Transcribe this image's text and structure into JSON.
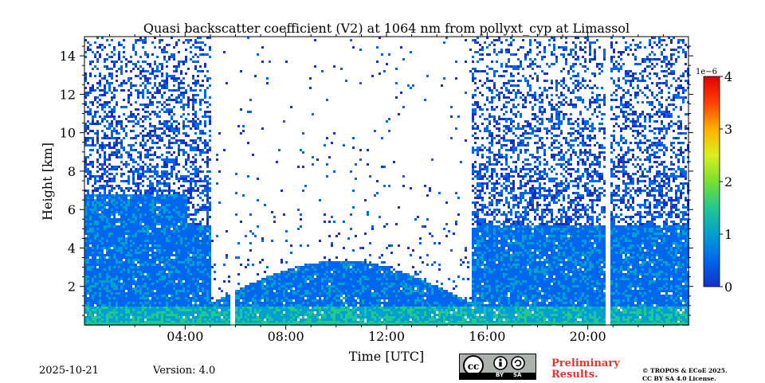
{
  "chart_data": {
    "type": "heatmap",
    "title": "Quasi backscatter coefficient (V2) at 1064 nm from pollyxt_cyp at Limassol",
    "xlabel": "Time [UTC]",
    "ylabel": "Height [km]",
    "xlim_hours": [
      0,
      24
    ],
    "ylim_km": [
      0,
      15
    ],
    "x_ticks": [
      {
        "h": 4,
        "label": "04:00"
      },
      {
        "h": 8,
        "label": "08:00"
      },
      {
        "h": 12,
        "label": "12:00"
      },
      {
        "h": 16,
        "label": "16:00"
      },
      {
        "h": 20,
        "label": "20:00"
      }
    ],
    "y_ticks": [
      {
        "v": 2,
        "label": "2"
      },
      {
        "v": 4,
        "label": "4"
      },
      {
        "v": 6,
        "label": "6"
      },
      {
        "v": 8,
        "label": "8"
      },
      {
        "v": 10,
        "label": "10"
      },
      {
        "v": 12,
        "label": "12"
      },
      {
        "v": 14,
        "label": "14"
      }
    ],
    "colorbar": {
      "min": 0,
      "max": 4,
      "scale_label": "1e−6",
      "ticks": [
        {
          "v": 0,
          "label": "0"
        },
        {
          "v": 1,
          "label": "1"
        },
        {
          "v": 2,
          "label": "2"
        },
        {
          "v": 3,
          "label": "3"
        },
        {
          "v": 4,
          "label": "4"
        }
      ],
      "colormap": [
        "#1530c8",
        "#0066ee",
        "#00a0d0",
        "#22c890",
        "#77e030",
        "#d8f020",
        "#ffb000",
        "#ff4000",
        "#e00000"
      ]
    },
    "data_gaps_hours": [
      [
        5.75,
        5.92
      ],
      [
        20.65,
        20.82
      ]
    ],
    "grid": false
  },
  "footer": {
    "date": "2025-10-21",
    "version": "Version: 4.0",
    "preliminary_line1": "Preliminary",
    "preliminary_line2": "Results.",
    "license_line1": "© TROPOS & ECoE 2025.",
    "license_line2": "CC BY SA 4.0 License.",
    "cc_by": "BY",
    "cc_sa": "SA"
  }
}
